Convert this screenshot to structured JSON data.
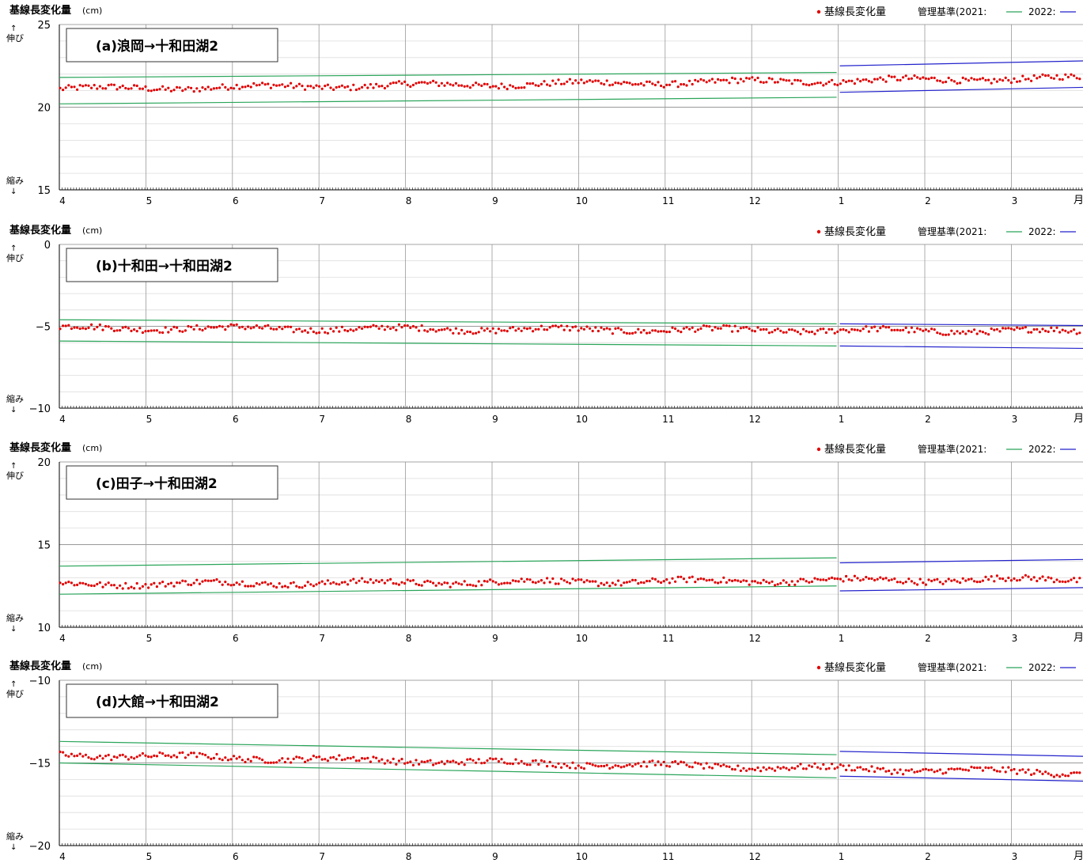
{
  "common": {
    "y_title": "基線長変化量",
    "y_unit": "(cm)",
    "stretch_label": "伸び",
    "shrink_label": "縮み",
    "legend_series": "基線長変化量",
    "legend_criteria": "管理基準(2021:",
    "legend_2022": "2022:",
    "x_end_label": "月",
    "x_ticks": [
      "4",
      "5",
      "6",
      "7",
      "8",
      "9",
      "10",
      "11",
      "12",
      "1",
      "2",
      "3"
    ],
    "colors": {
      "points": "#e00000",
      "limit_2021": "#2aa55a",
      "limit_2022": "#2222cc",
      "grid": "#999999",
      "minor_grid": "#dddddd"
    }
  },
  "chart_data": [
    {
      "type": "scatter",
      "title": "(a)浪岡→十和田湖2",
      "ylim": [
        15,
        25
      ],
      "ytick_labels": [
        "25",
        "20",
        "15"
      ],
      "series_center_start": 21.1,
      "series_center_end": 21.75,
      "limits_2021": {
        "upper": [
          21.8,
          22.1
        ],
        "lower": [
          20.2,
          20.6
        ]
      },
      "limits_2022": {
        "upper": [
          22.5,
          22.8
        ],
        "lower": [
          20.9,
          21.2
        ]
      }
    },
    {
      "type": "scatter",
      "title": "(b)十和田→十和田湖2",
      "ylim": [
        -10,
        0
      ],
      "ytick_labels": [
        "0",
        "−5",
        "−10"
      ],
      "series_center_start": -5.1,
      "series_center_end": -5.3,
      "limits_2021": {
        "upper": [
          -4.6,
          -4.85
        ],
        "lower": [
          -5.9,
          -6.2
        ]
      },
      "limits_2022": {
        "upper": [
          -4.85,
          -4.95
        ],
        "lower": [
          -6.2,
          -6.35
        ]
      }
    },
    {
      "type": "scatter",
      "title": "(c)田子→十和田湖2",
      "ylim": [
        10,
        20
      ],
      "ytick_labels": [
        "20",
        "15",
        "10"
      ],
      "series_center_start": 12.6,
      "series_center_end": 12.9,
      "limits_2021": {
        "upper": [
          13.7,
          14.2
        ],
        "lower": [
          12.0,
          12.5
        ]
      },
      "limits_2022": {
        "upper": [
          13.9,
          14.1
        ],
        "lower": [
          12.2,
          12.4
        ]
      }
    },
    {
      "type": "scatter",
      "title": "(d)大館→十和田湖2",
      "ylim": [
        -20,
        -10
      ],
      "ytick_labels": [
        "−10",
        "−15",
        "−20"
      ],
      "series_center_start": -14.5,
      "series_center_end": -15.6,
      "limits_2021": {
        "upper": [
          -13.7,
          -14.5
        ],
        "lower": [
          -15.0,
          -15.9
        ]
      },
      "limits_2022": {
        "upper": [
          -14.3,
          -14.6
        ],
        "lower": [
          -15.8,
          -16.1
        ]
      }
    }
  ]
}
